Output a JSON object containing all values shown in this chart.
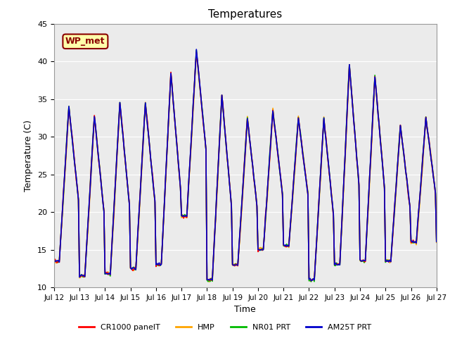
{
  "title": "Temperatures",
  "xlabel": "Time",
  "ylabel": "Temperature (C)",
  "ylim": [
    10,
    45
  ],
  "xlim": [
    0,
    360
  ],
  "label_text": "WP_met",
  "label_bg": "#FFFFAA",
  "label_border": "#8B0000",
  "plot_bg": "#EBEBEB",
  "fig_bg": "#FFFFFF",
  "xtick_positions": [
    0,
    24,
    48,
    72,
    96,
    120,
    144,
    168,
    192,
    216,
    240,
    264,
    288,
    312,
    336,
    360
  ],
  "xtick_labels": [
    "Jul 12",
    "Jul 13",
    "Jul 14",
    "Jul 15",
    "Jul 16",
    "Jul 17",
    "Jul 18",
    "Jul 19",
    "Jul 20",
    "Jul 21",
    "Jul 22",
    "Jul 23",
    "Jul 24",
    "Jul 25",
    "Jul 26",
    "Jul 27"
  ],
  "ytick_positions": [
    10,
    15,
    20,
    25,
    30,
    35,
    40,
    45
  ],
  "series": {
    "CR1000_panelT": {
      "label": "CR1000 panelT",
      "color": "#FF0000",
      "lw": 1.2
    },
    "HMP": {
      "label": "HMP",
      "color": "#FFA500",
      "lw": 1.2
    },
    "NR01_PRT": {
      "label": "NR01 PRT",
      "color": "#00BB00",
      "lw": 1.2
    },
    "AM25T_PRT": {
      "label": "AM25T PRT",
      "color": "#0000CC",
      "lw": 1.2
    }
  },
  "legend_loc": "lower center",
  "grid_color": "#FFFFFF",
  "grid_lw": 0.8,
  "day_maxes": [
    34.0,
    32.8,
    34.5,
    34.5,
    38.5,
    41.5,
    35.5,
    32.5,
    33.5,
    32.5,
    32.5,
    39.5,
    38.0,
    31.5,
    32.5
  ],
  "day_mins": [
    13.5,
    11.5,
    11.8,
    12.5,
    13.0,
    19.5,
    11.0,
    13.0,
    15.0,
    15.5,
    11.0,
    13.0,
    13.5,
    13.5,
    16.0
  ],
  "peak_hour": 14,
  "trough_hour": 5
}
